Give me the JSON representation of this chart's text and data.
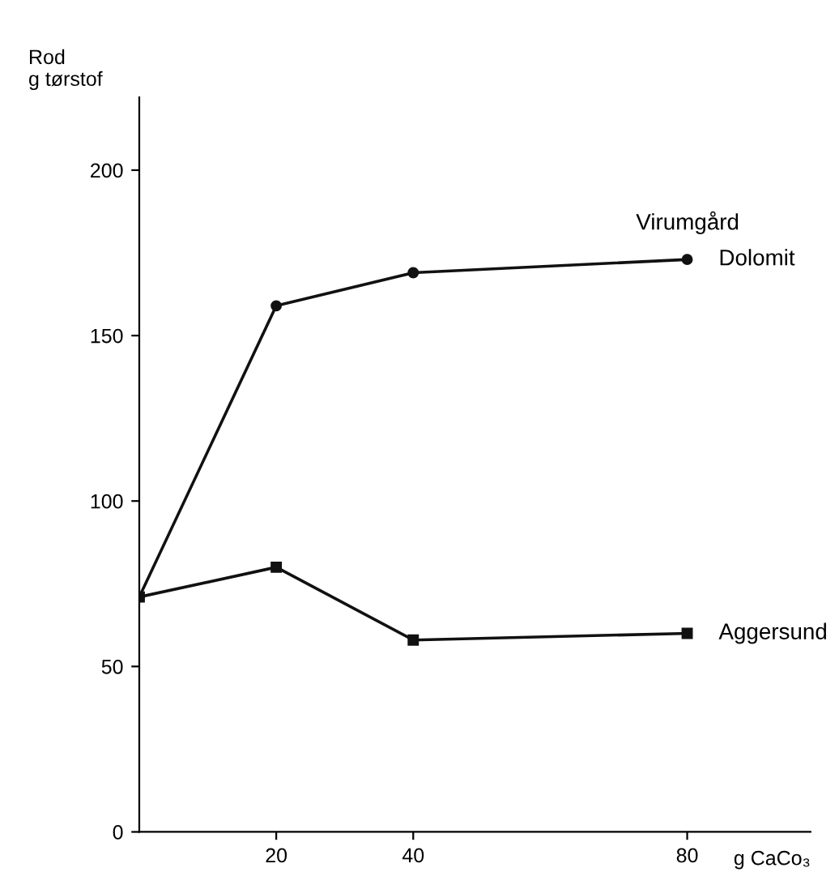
{
  "chart_data": {
    "type": "line",
    "ylabel": "Rod\ng tørstof",
    "xlabel": "g CaCo₃",
    "annotations": [
      "Virumgård"
    ],
    "x": [
      0,
      20,
      40,
      80
    ],
    "series": [
      {
        "name": "Dolomit",
        "color": "#111111",
        "values": [
          71,
          159,
          169,
          173
        ],
        "marker": "circle"
      },
      {
        "name": "Aggersund",
        "color": "#111111",
        "values": [
          71,
          80,
          58,
          60
        ],
        "marker": "square"
      }
    ],
    "xlim": [
      0,
      98
    ],
    "xticks": [
      20,
      40,
      80
    ],
    "ylim": [
      0,
      222
    ],
    "yticks": [
      0,
      50,
      100,
      150,
      200
    ],
    "grid": false,
    "legend": false,
    "line_style": "solid"
  }
}
